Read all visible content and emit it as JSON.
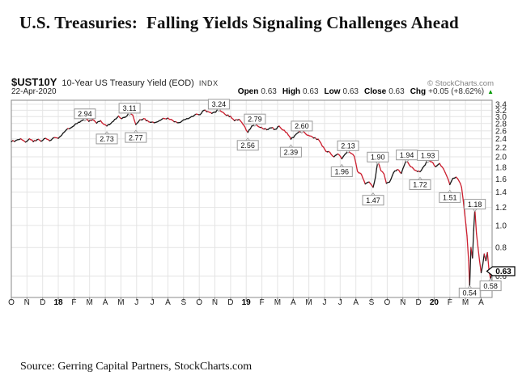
{
  "page": {
    "title": "U.S. Treasuries:  Falling Yields Signaling Challenges Ahead",
    "source": "Source: Gerring Capital Partners, StockCharts.com"
  },
  "chart": {
    "symbol": "$UST10Y",
    "name": "10-Year US Treasury Yield (EOD)",
    "exchange": "INDX",
    "date": "22-Apr-2020",
    "watermark": "© StockCharts.com",
    "quote": {
      "open_label": "Open",
      "open": "0.63",
      "high_label": "High",
      "high": "0.63",
      "low_label": "Low",
      "low": "0.63",
      "close_label": "Close",
      "close": "0.63",
      "chg_label": "Chg",
      "chg": "+0.05 (+8.62%)",
      "arrow": "▲"
    },
    "last_price_tag": "0.63"
  },
  "chart_data": {
    "type": "line",
    "title": "$UST10Y 10-Year US Treasury Yield (EOD) INDX",
    "date": "22-Apr-2020",
    "y_axis": {
      "scale": "log",
      "unit": "percent yield",
      "ticks": [
        3.4,
        3.2,
        3.0,
        2.8,
        2.6,
        2.4,
        2.2,
        2.0,
        1.8,
        1.6,
        1.4,
        1.2,
        1.0,
        0.8,
        0.6
      ],
      "shown_range": [
        0.54,
        3.24
      ]
    },
    "x_axis": {
      "unit": "months since Oct 2017",
      "start": "Oct 2017",
      "end": "Apr 2020",
      "labels": [
        "O",
        "N",
        "D",
        "18",
        "F",
        "M",
        "A",
        "M",
        "J",
        "J",
        "A",
        "S",
        "O",
        "N",
        "D",
        "19",
        "F",
        "M",
        "A",
        "M",
        "J",
        "J",
        "A",
        "S",
        "O",
        "N",
        "D",
        "20",
        "F",
        "M",
        "A"
      ]
    },
    "series": [
      {
        "name": "10-Year US Treasury Yield (EOD)",
        "points": [
          [
            0,
            2.33
          ],
          [
            0.3,
            2.36
          ],
          [
            0.6,
            2.4
          ],
          [
            0.9,
            2.32
          ],
          [
            1.15,
            2.4
          ],
          [
            1.4,
            2.33
          ],
          [
            1.65,
            2.38
          ],
          [
            1.9,
            2.34
          ],
          [
            2.2,
            2.41
          ],
          [
            2.45,
            2.35
          ],
          [
            2.75,
            2.43
          ],
          [
            3.0,
            2.41
          ],
          [
            3.3,
            2.54
          ],
          [
            3.6,
            2.66
          ],
          [
            3.9,
            2.71
          ],
          [
            4.2,
            2.8
          ],
          [
            4.45,
            2.87
          ],
          [
            4.7,
            2.94
          ],
          [
            4.95,
            2.86
          ],
          [
            5.2,
            2.91
          ],
          [
            5.45,
            2.81
          ],
          [
            5.7,
            2.88
          ],
          [
            5.9,
            2.78
          ],
          [
            6.1,
            2.73
          ],
          [
            6.35,
            2.8
          ],
          [
            6.6,
            2.92
          ],
          [
            6.85,
            3.02
          ],
          [
            7.05,
            2.94
          ],
          [
            7.3,
            2.99
          ],
          [
            7.55,
            3.11
          ],
          [
            7.75,
            3.05
          ],
          [
            7.95,
            2.77
          ],
          [
            8.2,
            2.91
          ],
          [
            8.45,
            2.94
          ],
          [
            8.7,
            2.88
          ],
          [
            8.95,
            2.84
          ],
          [
            9.2,
            2.83
          ],
          [
            9.45,
            2.88
          ],
          [
            9.7,
            2.95
          ],
          [
            10.0,
            2.96
          ],
          [
            10.3,
            2.89
          ],
          [
            10.6,
            2.82
          ],
          [
            10.9,
            2.87
          ],
          [
            11.2,
            2.94
          ],
          [
            11.5,
            3.0
          ],
          [
            11.8,
            3.08
          ],
          [
            12.05,
            3.06
          ],
          [
            12.3,
            3.2
          ],
          [
            12.55,
            3.16
          ],
          [
            12.8,
            3.1
          ],
          [
            13.05,
            3.14
          ],
          [
            13.25,
            3.24
          ],
          [
            13.5,
            3.14
          ],
          [
            13.75,
            3.04
          ],
          [
            14.0,
            3.01
          ],
          [
            14.25,
            2.88
          ],
          [
            14.55,
            2.92
          ],
          [
            14.8,
            2.77
          ],
          [
            15.1,
            2.56
          ],
          [
            15.35,
            2.73
          ],
          [
            15.55,
            2.79
          ],
          [
            15.8,
            2.71
          ],
          [
            16.05,
            2.66
          ],
          [
            16.3,
            2.63
          ],
          [
            16.6,
            2.68
          ],
          [
            16.85,
            2.64
          ],
          [
            17.1,
            2.73
          ],
          [
            17.35,
            2.62
          ],
          [
            17.6,
            2.55
          ],
          [
            17.85,
            2.39
          ],
          [
            18.1,
            2.48
          ],
          [
            18.3,
            2.55
          ],
          [
            18.55,
            2.6
          ],
          [
            18.8,
            2.52
          ],
          [
            19.05,
            2.47
          ],
          [
            19.3,
            2.42
          ],
          [
            19.6,
            2.39
          ],
          [
            19.85,
            2.23
          ],
          [
            20.1,
            2.11
          ],
          [
            20.35,
            2.09
          ],
          [
            20.6,
            2.0
          ],
          [
            20.85,
            2.06
          ],
          [
            21.1,
            1.96
          ],
          [
            21.3,
            2.05
          ],
          [
            21.5,
            2.13
          ],
          [
            21.7,
            2.07
          ],
          [
            21.9,
            2.01
          ],
          [
            22.1,
            1.73
          ],
          [
            22.35,
            1.68
          ],
          [
            22.6,
            1.52
          ],
          [
            22.85,
            1.55
          ],
          [
            23.1,
            1.47
          ],
          [
            23.25,
            1.63
          ],
          [
            23.4,
            1.9
          ],
          [
            23.6,
            1.74
          ],
          [
            23.8,
            1.68
          ],
          [
            23.95,
            1.53
          ],
          [
            24.15,
            1.55
          ],
          [
            24.4,
            1.7
          ],
          [
            24.65,
            1.76
          ],
          [
            24.9,
            1.69
          ],
          [
            25.1,
            1.84
          ],
          [
            25.25,
            1.94
          ],
          [
            25.5,
            1.81
          ],
          [
            25.75,
            1.75
          ],
          [
            26.1,
            1.72
          ],
          [
            26.35,
            1.82
          ],
          [
            26.6,
            1.93
          ],
          [
            26.85,
            1.9
          ],
          [
            27.1,
            1.81
          ],
          [
            27.35,
            1.87
          ],
          [
            27.6,
            1.77
          ],
          [
            27.8,
            1.65
          ],
          [
            28.0,
            1.51
          ],
          [
            28.2,
            1.61
          ],
          [
            28.4,
            1.63
          ],
          [
            28.6,
            1.56
          ],
          [
            28.75,
            1.47
          ],
          [
            28.95,
            1.13
          ],
          [
            29.1,
            0.9
          ],
          [
            29.2,
            0.7
          ],
          [
            29.27,
            0.54
          ],
          [
            29.35,
            0.8
          ],
          [
            29.45,
            0.72
          ],
          [
            29.52,
            0.95
          ],
          [
            29.6,
            1.18
          ],
          [
            29.7,
            0.92
          ],
          [
            29.8,
            0.8
          ],
          [
            29.9,
            0.7
          ],
          [
            30.0,
            0.62
          ],
          [
            30.1,
            0.67
          ],
          [
            30.2,
            0.75
          ],
          [
            30.3,
            0.7
          ],
          [
            30.4,
            0.76
          ],
          [
            30.5,
            0.64
          ],
          [
            30.6,
            0.58
          ],
          [
            30.7,
            0.63
          ]
        ]
      }
    ],
    "swing_labels": [
      {
        "text": "2.94",
        "t": 4.7,
        "value": 2.94,
        "side": "up"
      },
      {
        "text": "2.73",
        "t": 6.1,
        "value": 2.73,
        "side": "down"
      },
      {
        "text": "3.11",
        "t": 7.55,
        "value": 3.11,
        "side": "up"
      },
      {
        "text": "2.77",
        "t": 7.95,
        "value": 2.77,
        "side": "down"
      },
      {
        "text": "3.24",
        "t": 13.25,
        "value": 3.24,
        "side": "up"
      },
      {
        "text": "2.56",
        "t": 15.1,
        "value": 2.56,
        "side": "down"
      },
      {
        "text": "2.79",
        "t": 15.55,
        "value": 2.79,
        "side": "up"
      },
      {
        "text": "2.39",
        "t": 17.85,
        "value": 2.39,
        "side": "down"
      },
      {
        "text": "2.60",
        "t": 18.55,
        "value": 2.6,
        "side": "up"
      },
      {
        "text": "1.96",
        "t": 21.1,
        "value": 1.96,
        "side": "down"
      },
      {
        "text": "2.13",
        "t": 21.5,
        "value": 2.13,
        "side": "up"
      },
      {
        "text": "1.47",
        "t": 23.1,
        "value": 1.47,
        "side": "down"
      },
      {
        "text": "1.90",
        "t": 23.4,
        "value": 1.9,
        "side": "up"
      },
      {
        "text": "1.94",
        "t": 25.25,
        "value": 1.94,
        "side": "up"
      },
      {
        "text": "1.72",
        "t": 26.1,
        "value": 1.72,
        "side": "down"
      },
      {
        "text": "1.93",
        "t": 26.6,
        "value": 1.93,
        "side": "up"
      },
      {
        "text": "1.51",
        "t": 28.0,
        "value": 1.51,
        "side": "down"
      },
      {
        "text": "0.54",
        "t": 29.27,
        "value": 0.54,
        "side": "down"
      },
      {
        "text": "1.18",
        "t": 29.6,
        "value": 1.18,
        "side": "up"
      },
      {
        "text": "0.58",
        "t": 30.6,
        "value": 0.58,
        "side": "down"
      }
    ],
    "last": {
      "value": 0.63,
      "t": 30.7
    },
    "colors": {
      "down": "#cc2030",
      "up": "#1a1a1a",
      "grid": "#e4e4e4",
      "frame": "#8a8a8a",
      "flag_border": "#9a9a9a",
      "tag_border": "#000000",
      "chg_up_green": "#009900"
    }
  }
}
